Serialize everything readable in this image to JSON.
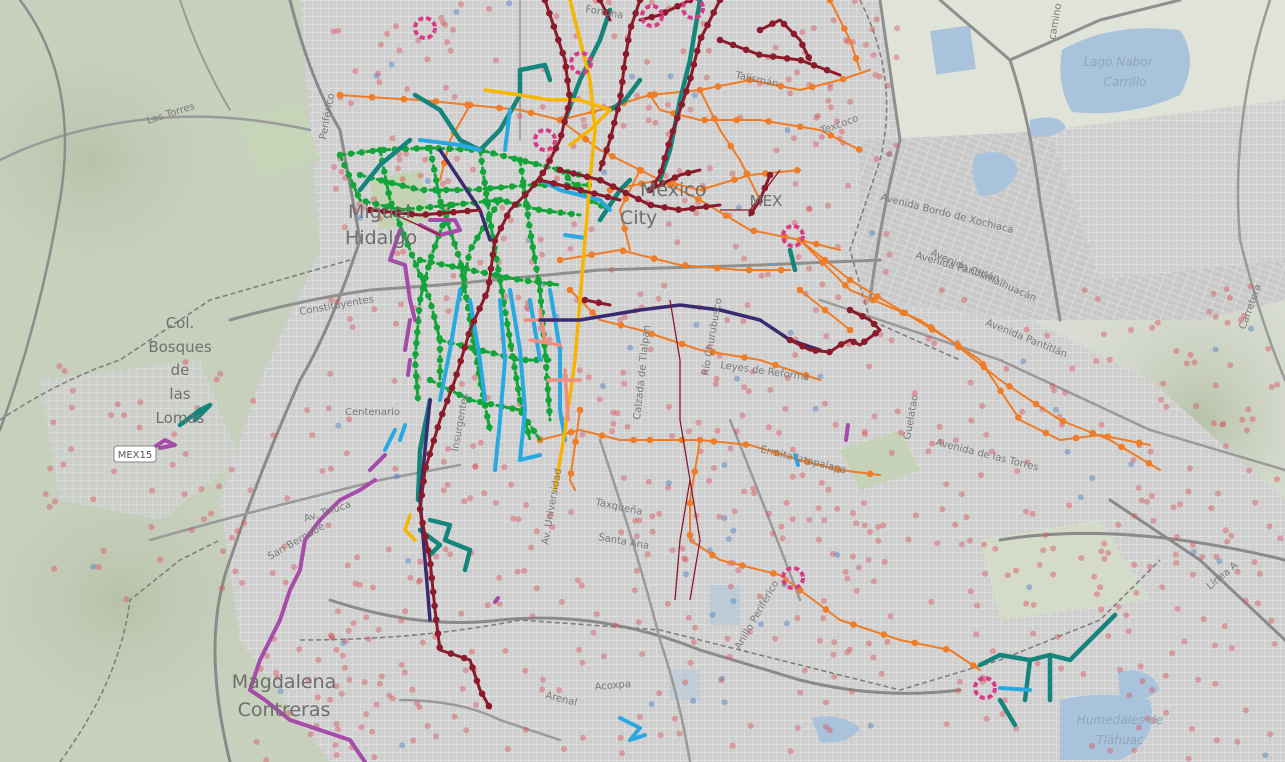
{
  "labels": {
    "lago": [
      "Lago Nabor",
      "Carrillo"
    ],
    "humedales": [
      "Humedales de",
      "Tláhuac"
    ],
    "mex_center": "MEX",
    "mexico_partial": "México",
    "city_partial": "City",
    "miguel": "Miguel",
    "hidalgo": "Hidalgo",
    "bosques": [
      "Col.",
      "Bosques",
      "de",
      "las",
      "Lomas"
    ],
    "magdalena": [
      "Magdalena",
      "Contreras"
    ],
    "shield": "MEX15"
  },
  "streets": {
    "las_torres": "Las Torres",
    "periferico": "Periférico",
    "fortuna": "Fortuna",
    "talisman": "Talismán",
    "texcoco": "Texcoco",
    "bordo": "Avenida Bordo de Xochiaca",
    "pantitlan1": "Avenida Pantitlán",
    "chimalhuacan": "Avenida Chimalhuacán",
    "pantitlan2": "Avenida Pantitlán",
    "constituyentes": "Constituyentes",
    "centenario": "Centenario",
    "toluca": "Av. Toluca",
    "reforma": "Leyes de Reforma",
    "churubusco": "Río Churubusco",
    "ermita": "Ermita Iztapalapa",
    "torres2": "Avenida de las Torres",
    "taxquena": "Taxqueña",
    "santa_ana": "Santa Ana",
    "acoxpa": "Acoxpa",
    "arenal": "Arenal",
    "linea_a": "Línea A",
    "carretera": "Carretera",
    "camino": "camino",
    "calzada": "Calzada de Tlalpan",
    "vecino": "Av. Universidad",
    "insurgentes": "Insurgentes",
    "guelatao": "Guelatao",
    "anillo": "Anillo Periférico",
    "sanbernabe": "San Bernabé"
  },
  "colors": {
    "metro_dark": "#8b1a2b",
    "metro_orange": "#ef7c26",
    "metrobus_green": "#13a539",
    "teal": "#14857b",
    "blue": "#2aa9e0",
    "yellow": "#f7b500",
    "purple": "#a54ca8",
    "navy": "#3b2a6f",
    "pink_ring": "#d83a86",
    "points": "#d9545b"
  }
}
